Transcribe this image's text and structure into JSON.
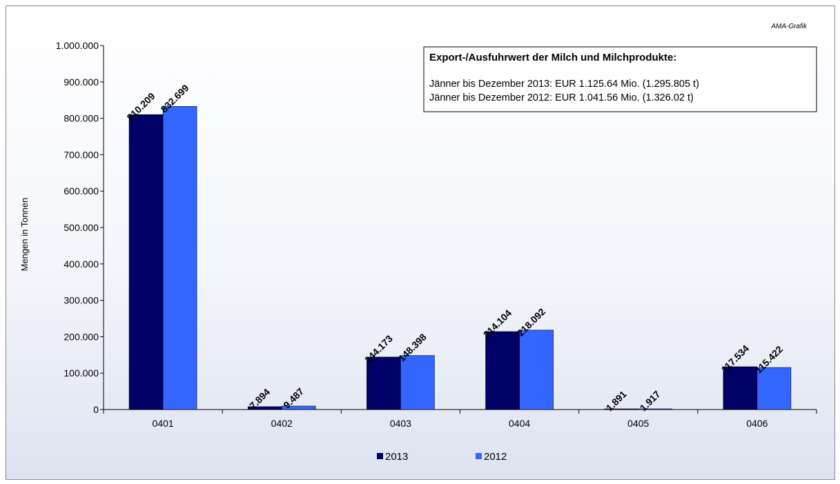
{
  "credit": "AMA-Grafik",
  "info_box": {
    "title": "Export-/Ausfuhrwert der Milch und Milchprodukte:",
    "line1": "Jänner bis Dezember 2013: EUR 1.125.64 Mio. (1.295.805 t)",
    "line2": "Jänner bis Dezember 2012: EUR 1.041.56 Mio. (1.326.02 t)"
  },
  "chart_data": {
    "type": "bar",
    "title": "",
    "xlabel": "",
    "ylabel": "Mengen in Tonnen",
    "categories": [
      "0401",
      "0402",
      "0403",
      "0404",
      "0405",
      "0406"
    ],
    "series": [
      {
        "name": "2013",
        "color": "#000066",
        "values": [
          810209,
          7894,
          144173,
          214104,
          1891,
          117534
        ],
        "labels": [
          "810.209",
          "7.894",
          "144.173",
          "214.104",
          "1.891",
          "117.534"
        ]
      },
      {
        "name": "2012",
        "color": "#3366ff",
        "values": [
          832699,
          9487,
          148398,
          218092,
          1917,
          115422
        ],
        "labels": [
          "832.699",
          "9.487",
          "148.398",
          "218.092",
          "1.917",
          "115.422"
        ]
      }
    ],
    "ylim": [
      0,
      1000000
    ],
    "yticks": [
      0,
      100000,
      200000,
      300000,
      400000,
      500000,
      600000,
      700000,
      800000,
      900000,
      1000000
    ],
    "ytick_labels": [
      "0",
      "100.000",
      "200.000",
      "300.000",
      "400.000",
      "500.000",
      "600.000",
      "700.000",
      "800.000",
      "900.000",
      "1.000.000"
    ],
    "grid": false,
    "legend_position": "bottom-center"
  }
}
